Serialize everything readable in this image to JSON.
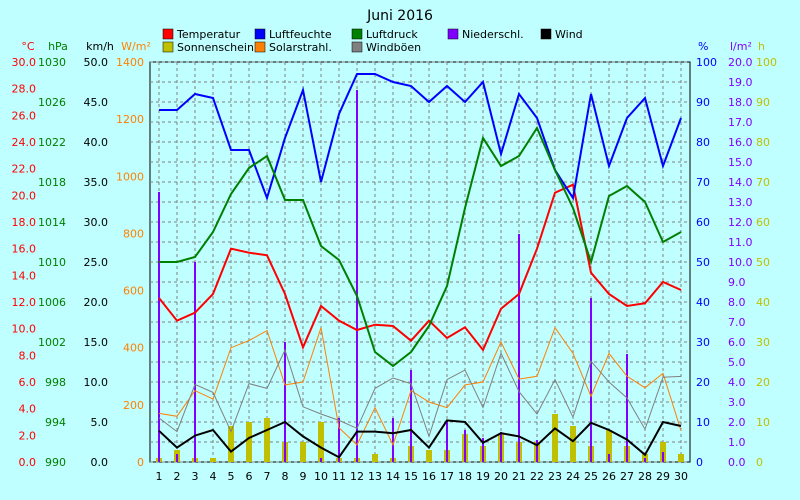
{
  "chart_data": {
    "type": "line",
    "title": "Juni 2016",
    "x": [
      1,
      2,
      3,
      4,
      5,
      6,
      7,
      8,
      9,
      10,
      11,
      12,
      13,
      14,
      15,
      16,
      17,
      18,
      19,
      20,
      21,
      22,
      23,
      24,
      25,
      26,
      27,
      28,
      29,
      30
    ],
    "axes": [
      {
        "key": "temp",
        "unit": "°C",
        "side": "left",
        "color": "#ff0000",
        "min": 0,
        "max": 30,
        "step": 2,
        "decimals": 1
      },
      {
        "key": "hpa",
        "unit": "hPa",
        "side": "left",
        "color": "#008000",
        "min": 990,
        "max": 1030,
        "step": 4,
        "decimals": 0
      },
      {
        "key": "kmh",
        "unit": "km/h",
        "side": "left",
        "color": "#000000",
        "min": 0,
        "max": 50,
        "step": 5,
        "decimals": 1
      },
      {
        "key": "wm2",
        "unit": "W/m²",
        "side": "left",
        "color": "#ff8000",
        "min": 0,
        "max": 1400,
        "step": 200,
        "decimals": 0
      },
      {
        "key": "pct",
        "unit": "%",
        "side": "right",
        "color": "#0000ff",
        "min": 0,
        "max": 100,
        "step": 10,
        "decimals": 0
      },
      {
        "key": "lm2",
        "unit": "l/m²",
        "side": "right",
        "color": "#8000ff",
        "min": 0,
        "max": 20,
        "step": 1,
        "decimals": 1
      },
      {
        "key": "h",
        "unit": "h",
        "side": "right",
        "color": "#c0c000",
        "min": 0,
        "max": 100,
        "step": 10,
        "decimals": 0
      }
    ],
    "legend": [
      {
        "label": "Temperatur",
        "color": "#ff0000"
      },
      {
        "label": "Luftfeuchte",
        "color": "#0000ff"
      },
      {
        "label": "Luftdruck",
        "color": "#008000"
      },
      {
        "label": "Niederschl.",
        "color": "#8000ff"
      },
      {
        "label": "Wind",
        "color": "#000000"
      },
      {
        "label": "Sonnenschein",
        "color": "#c0c000"
      },
      {
        "label": "Solarstrahl.",
        "color": "#ff8000"
      },
      {
        "label": "Windböen",
        "color": "#808080"
      }
    ],
    "series": [
      {
        "name": "Temperatur",
        "type": "line",
        "axis": "temp",
        "color": "#ff0000",
        "width": 2,
        "values": [
          12.3,
          10.6,
          11.2,
          12.6,
          16.0,
          15.7,
          15.5,
          12.6,
          8.6,
          11.7,
          10.6,
          9.9,
          10.3,
          10.2,
          9.1,
          10.6,
          9.3,
          10.1,
          8.4,
          11.5,
          12.6,
          16.0,
          20.2,
          20.8,
          14.2,
          12.6,
          11.7,
          11.9,
          13.5,
          12.9
        ],
        "bind": "chart_data.series.0.name"
      },
      {
        "name": "Luftfeuchte",
        "type": "line",
        "axis": "pct",
        "color": "#0000ff",
        "width": 2,
        "values": [
          88,
          88,
          92,
          91,
          78,
          78,
          66,
          81,
          93,
          70,
          87,
          97,
          97,
          95,
          94,
          90,
          94,
          90,
          95,
          77,
          92,
          86,
          73,
          66,
          92,
          74,
          86,
          91,
          74,
          86
        ],
        "bind": "chart_data.series.1.name"
      },
      {
        "name": "Luftdruck",
        "type": "line",
        "axis": "hpa",
        "color": "#008000",
        "width": 2,
        "values": [
          1010,
          1010,
          1010.5,
          1013,
          1016.8,
          1019.4,
          1020.6,
          1016.2,
          1016.2,
          1011.6,
          1010.2,
          1006.6,
          1001,
          999.6,
          1001,
          1003.6,
          1007.6,
          1015.4,
          1022.4,
          1019.6,
          1020.6,
          1023.4,
          1019.2,
          1015.4,
          1010,
          1016.6,
          1017.6,
          1016,
          1012,
          1013
        ],
        "bind": "chart_data.series.2.name"
      },
      {
        "name": "Solarstrahl.",
        "type": "line",
        "axis": "wm2",
        "color": "#ff8000",
        "width": 1,
        "values": [
          170,
          160,
          250,
          220,
          400,
          425,
          460,
          270,
          280,
          470,
          120,
          60,
          190,
          60,
          250,
          210,
          190,
          270,
          280,
          420,
          290,
          300,
          470,
          380,
          230,
          380,
          300,
          260,
          310,
          110
        ],
        "bind": "chart_data.series.6.name"
      },
      {
        "name": "Windböen",
        "type": "line",
        "axis": "kmh",
        "color": "#808080",
        "width": 1,
        "values": [
          5.5,
          3.8,
          9.7,
          8.7,
          3.8,
          9.8,
          9.2,
          14.0,
          6.9,
          6.0,
          5.2,
          4.2,
          9.2,
          10.5,
          9.8,
          3.2,
          10.3,
          11.5,
          6.8,
          13.6,
          8.8,
          6.0,
          10.3,
          5.6,
          12.6,
          10.0,
          8.0,
          4.1,
          10.6,
          10.7
        ],
        "bind": "chart_data.series.7.name"
      },
      {
        "name": "Wind",
        "type": "line",
        "axis": "kmh",
        "color": "#000000",
        "width": 2,
        "values": [
          3.9,
          1.8,
          3.3,
          4.0,
          1.3,
          3.0,
          4.0,
          5.0,
          3.2,
          1.8,
          0.6,
          3.8,
          3.8,
          3.6,
          4.0,
          1.8,
          5.2,
          5.0,
          2.4,
          3.6,
          3.2,
          2.1,
          4.2,
          2.6,
          4.9,
          4.0,
          2.8,
          0.9,
          5.0,
          4.5
        ],
        "bind": "chart_data.series.4.name"
      },
      {
        "name": "Sonnenschein",
        "type": "bar",
        "axis": "h",
        "color": "#c0c000",
        "barWidth": 6,
        "values": [
          1,
          3,
          1,
          1,
          9,
          10,
          11,
          5,
          5,
          10,
          1,
          1,
          2,
          1,
          4,
          3,
          3,
          7,
          4,
          7,
          5,
          5,
          12,
          9,
          4,
          8,
          4,
          2,
          5,
          2
        ],
        "bind": "chart_data.series.5.name"
      },
      {
        "name": "Niederschl.",
        "type": "bar",
        "axis": "lm2",
        "color": "#8000ff",
        "barWidth": 2,
        "values": [
          13.5,
          0.4,
          10.0,
          0,
          0,
          0,
          0,
          6.0,
          0,
          0.2,
          2.2,
          18.6,
          0,
          2.2,
          4.6,
          0,
          2.1,
          1.6,
          1.2,
          1.5,
          11.4,
          1.1,
          0,
          0,
          8.2,
          0.4,
          5.4,
          0.2,
          0.5,
          0
        ],
        "bind": "chart_data.series.3.name"
      }
    ]
  }
}
